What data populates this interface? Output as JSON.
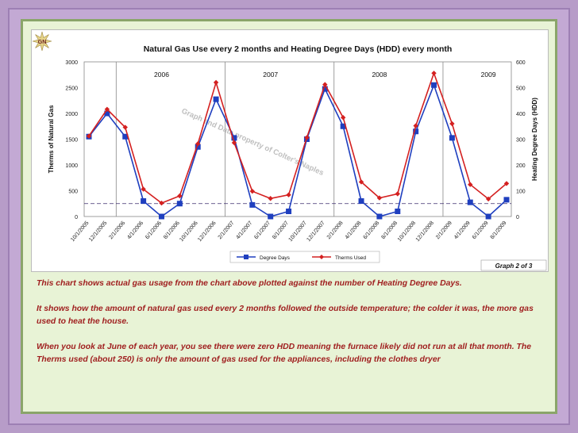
{
  "page": {
    "logo_text": "GN",
    "notes": [
      "This chart shows actual gas usage from the chart above plotted against the number of Heating Degree Days.",
      "It shows how the amount of natural gas used every 2 months followed the outside temperature; the colder it was, the more gas used to heat the house.",
      "When you look at June of each year, you see there were zero HDD meaning the furnace likely did not run at all that month. The Therms used (about 250) is only the amount of gas used for the appliances, including the clothes dryer"
    ]
  },
  "chart_data": {
    "type": "line",
    "title": "Natural Gas Use every 2 months and Heating Degree Days (HDD) every month",
    "ylabel": "Therms of Natural Gas",
    "y2label": "Heating Degree Days (HDD)",
    "ylim": [
      0,
      3000
    ],
    "y2lim": [
      0,
      600
    ],
    "yticks": [
      "0",
      "500",
      "1000",
      "1500",
      "2000",
      "2500",
      "3000"
    ],
    "y2ticks": [
      "0",
      "100",
      "200",
      "300",
      "400",
      "500",
      "600"
    ],
    "categories": [
      "10/1/2005",
      "12/1/2005",
      "2/1/2006",
      "4/1/2006",
      "6/1/2006",
      "8/1/2006",
      "10/1/2006",
      "12/1/2006",
      "2/1/2007",
      "4/1/2007",
      "6/1/2007",
      "8/1/2007",
      "10/1/2007",
      "12/1/2007",
      "2/1/2008",
      "4/1/2008",
      "6/1/2008",
      "8/1/2008",
      "10/1/2008",
      "12/1/2008",
      "2/1/2009",
      "4/1/2009",
      "6/1/2009",
      "8/1/2009"
    ],
    "series": [
      {
        "name": "Degree Days",
        "axis": "right",
        "color": "#1f3fbf",
        "values": [
          310,
          400,
          310,
          60,
          0,
          50,
          270,
          455,
          305,
          45,
          0,
          20,
          300,
          495,
          350,
          60,
          0,
          20,
          330,
          510,
          305,
          55,
          0,
          65
        ]
      },
      {
        "name": "Therms Used",
        "axis": "left",
        "color": "#d42020",
        "values": [
          1560,
          2080,
          1730,
          530,
          260,
          400,
          1410,
          2600,
          1430,
          490,
          350,
          420,
          1530,
          2560,
          1920,
          670,
          360,
          440,
          1760,
          2780,
          1800,
          620,
          340,
          640
        ]
      }
    ],
    "reference_line": {
      "axis": "left",
      "value": 250,
      "style": "dashed"
    },
    "year_labels": [
      {
        "text": "2006",
        "index": 4
      },
      {
        "text": "2007",
        "index": 10
      },
      {
        "text": "2008",
        "index": 16
      },
      {
        "text": "2009",
        "index": 22
      }
    ],
    "year_dividers": [
      1.5,
      7.5,
      13.5,
      19.5
    ],
    "watermark": "Graph and Data property of Colter's Naples",
    "footer_label": "Graph 2 of 3"
  }
}
